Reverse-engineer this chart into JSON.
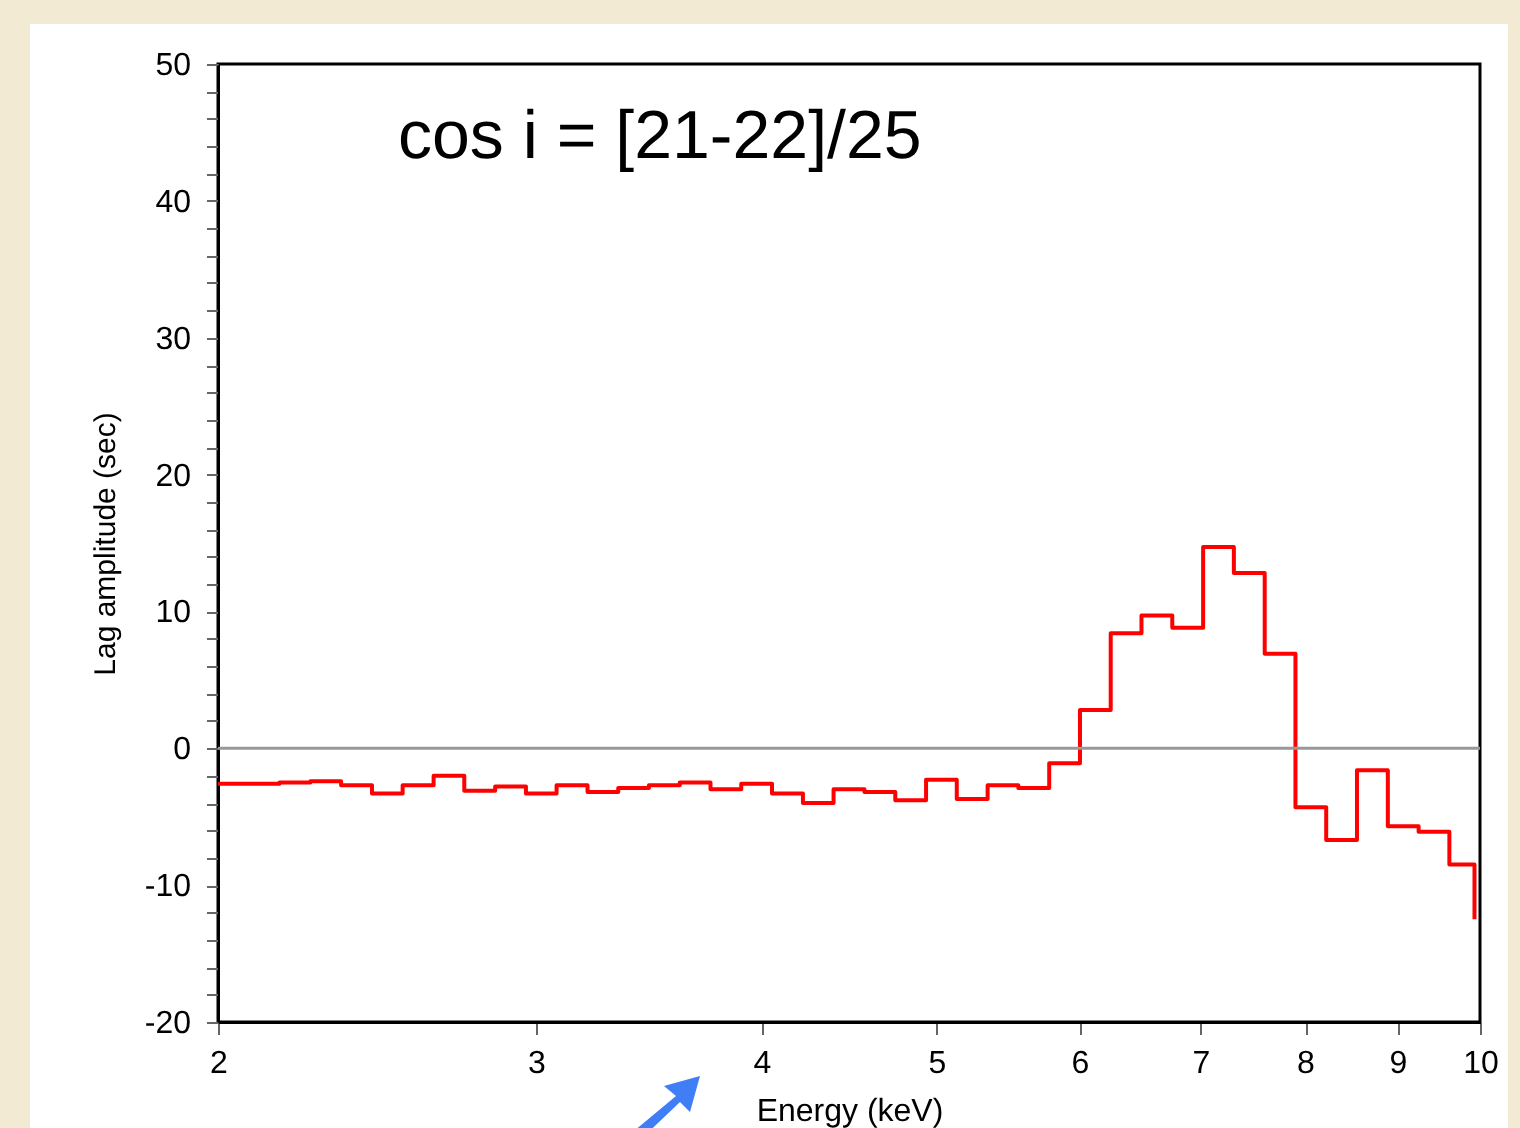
{
  "chart_data": {
    "type": "step",
    "annotations": [
      "cos i = [21-22]/25"
    ],
    "xlabel": "Energy (keV)",
    "ylabel": "Lag amplitude (sec)",
    "x": [
      2.0,
      2.08,
      2.163,
      2.25,
      2.34,
      2.434,
      2.531,
      2.633,
      2.738,
      2.848,
      2.962,
      3.08,
      3.204,
      3.332,
      3.465,
      3.604,
      3.748,
      3.898,
      4.054,
      4.217,
      4.385,
      4.561,
      4.744,
      4.934,
      5.131,
      5.337,
      5.55,
      5.773,
      6.004,
      6.244,
      6.494,
      6.754,
      7.025,
      7.306,
      7.599,
      7.903,
      8.219,
      8.548,
      8.891,
      9.247,
      9.617,
      9.93
    ],
    "series": [
      {
        "color": "#ff0000",
        "values": [
          -2.6,
          -2.6,
          -2.5,
          -2.4,
          -2.7,
          -3.3,
          -2.7,
          -2.0,
          -3.1,
          -2.8,
          -3.3,
          -2.7,
          -3.2,
          -2.9,
          -2.7,
          -2.5,
          -3.0,
          -2.6,
          -3.3,
          -4.0,
          -3.0,
          -3.2,
          -3.8,
          -2.3,
          -3.7,
          -2.7,
          -2.9,
          -1.1,
          2.8,
          8.4,
          9.7,
          8.8,
          14.7,
          12.8,
          6.9,
          -4.3,
          -6.7,
          -1.6,
          -5.7,
          -6.1,
          -8.5,
          -12.5
        ]
      }
    ],
    "log": "x",
    "xlim": [
      2,
      10
    ],
    "xticks": [
      2,
      3,
      4,
      5,
      6,
      7,
      8,
      9,
      10
    ],
    "ylim": [
      -20,
      50
    ],
    "yticks": [
      -20,
      {
        "value": -18,
        "label": null
      },
      {
        "value": -16,
        "label": null
      },
      {
        "value": -14,
        "label": null
      },
      {
        "value": -12,
        "label": null
      },
      -10,
      {
        "value": -8,
        "label": null
      },
      {
        "value": -6,
        "label": null
      },
      {
        "value": -4,
        "label": null
      },
      {
        "value": -2,
        "label": null
      },
      0,
      {
        "value": 2,
        "label": null
      },
      {
        "value": 4,
        "label": null
      },
      {
        "value": 6,
        "label": null
      },
      {
        "value": 8,
        "label": null
      },
      10,
      {
        "value": 12,
        "label": null
      },
      {
        "value": 14,
        "label": null
      },
      {
        "value": 16,
        "label": null
      },
      {
        "value": 18,
        "label": null
      },
      20,
      {
        "value": 22,
        "label": null
      },
      {
        "value": 24,
        "label": null
      },
      {
        "value": 26,
        "label": null
      },
      {
        "value": 28,
        "label": null
      },
      30,
      {
        "value": 32,
        "label": null
      },
      {
        "value": 34,
        "label": null
      },
      {
        "value": 36,
        "label": null
      },
      {
        "value": 38,
        "label": null
      },
      40,
      {
        "value": 42,
        "label": null
      },
      {
        "value": 44,
        "label": null
      },
      {
        "value": 46,
        "label": null
      },
      {
        "value": 48,
        "label": null
      },
      50
    ],
    "ref_lines": [
      {
        "axis": "y",
        "value": 0,
        "color": "#999999"
      }
    ],
    "grid": false
  }
}
